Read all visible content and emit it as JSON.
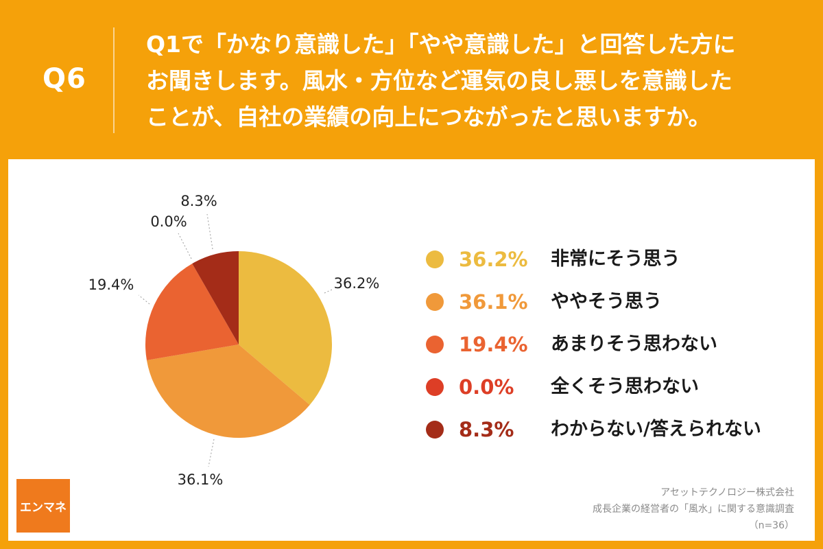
{
  "header": {
    "qnum": "Q6",
    "question_lines": [
      "Q1で「かなり意識した」「やや意識した」と回答した方に",
      "お聞きします。風水・方位など運気の良し悪しを意識した",
      "ことが、自社の業績の向上につながったと思いますか。"
    ]
  },
  "chart_data": {
    "type": "pie",
    "title": "Q1で「かなり意識した」「やや意識した」と回答した方にお聞きします。風水・方位など運気の良し悪しを意識したことが、自社の業績の向上につながったと思いますか。",
    "n": 36,
    "slices": [
      {
        "label": "非常にそう思う",
        "value": 36.2,
        "display": "36.2%",
        "color": "#ECBB40"
      },
      {
        "label": "ややそう思う",
        "value": 36.1,
        "display": "36.1%",
        "color": "#F0993A"
      },
      {
        "label": "あまりそう思わない",
        "value": 19.4,
        "display": "19.4%",
        "color": "#EA6331"
      },
      {
        "label": "全くそう思わない",
        "value": 0.0,
        "display": "0.0%",
        "color": "#DD3E26"
      },
      {
        "label": "わからない/答えられない",
        "value": 8.3,
        "display": "8.3%",
        "color": "#A42C18"
      }
    ],
    "legend_position": "right"
  },
  "logo": {
    "text": "エンマネ"
  },
  "credits": {
    "line1": "アセットテクノロジー株式会社",
    "line2": "成長企業の経営者の「風水」に関する意識調査",
    "line3": "（n=36）"
  }
}
